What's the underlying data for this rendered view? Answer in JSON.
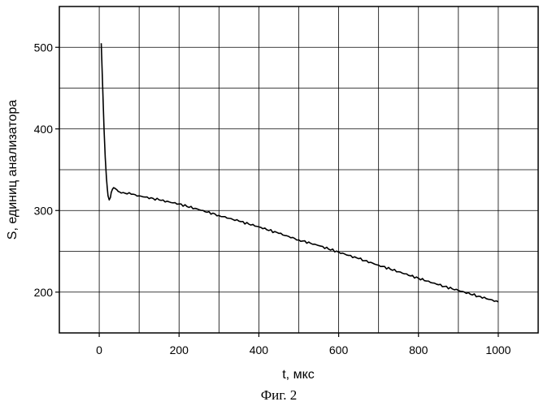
{
  "chart_data": {
    "type": "line",
    "xlabel": "t, мкс",
    "ylabel": "S, единиц анализатора",
    "caption": "Фиг. 2",
    "xlim": [
      -100,
      1100
    ],
    "ylim": [
      150,
      550
    ],
    "x_ticks": [
      0,
      200,
      400,
      600,
      800,
      1000
    ],
    "y_ticks": [
      200,
      300,
      400,
      500
    ],
    "grid": true,
    "series": [
      {
        "x": [
          5,
          6,
          8,
          10,
          12,
          15,
          18,
          20,
          22,
          25,
          28,
          30,
          33,
          36,
          40,
          45,
          50,
          60,
          80,
          100,
          150,
          200,
          250,
          300,
          350,
          400,
          450,
          500,
          550,
          600,
          650,
          700,
          750,
          800,
          850,
          900,
          950,
          1000
        ],
        "y": [
          505,
          490,
          460,
          430,
          400,
          365,
          340,
          328,
          318,
          313,
          316,
          322,
          326,
          328,
          327,
          325,
          323,
          322,
          320,
          318,
          313,
          308,
          301,
          294,
          287,
          280,
          272,
          264,
          257,
          249,
          241,
          233,
          225,
          217,
          209,
          202,
          195,
          188
        ]
      }
    ]
  }
}
